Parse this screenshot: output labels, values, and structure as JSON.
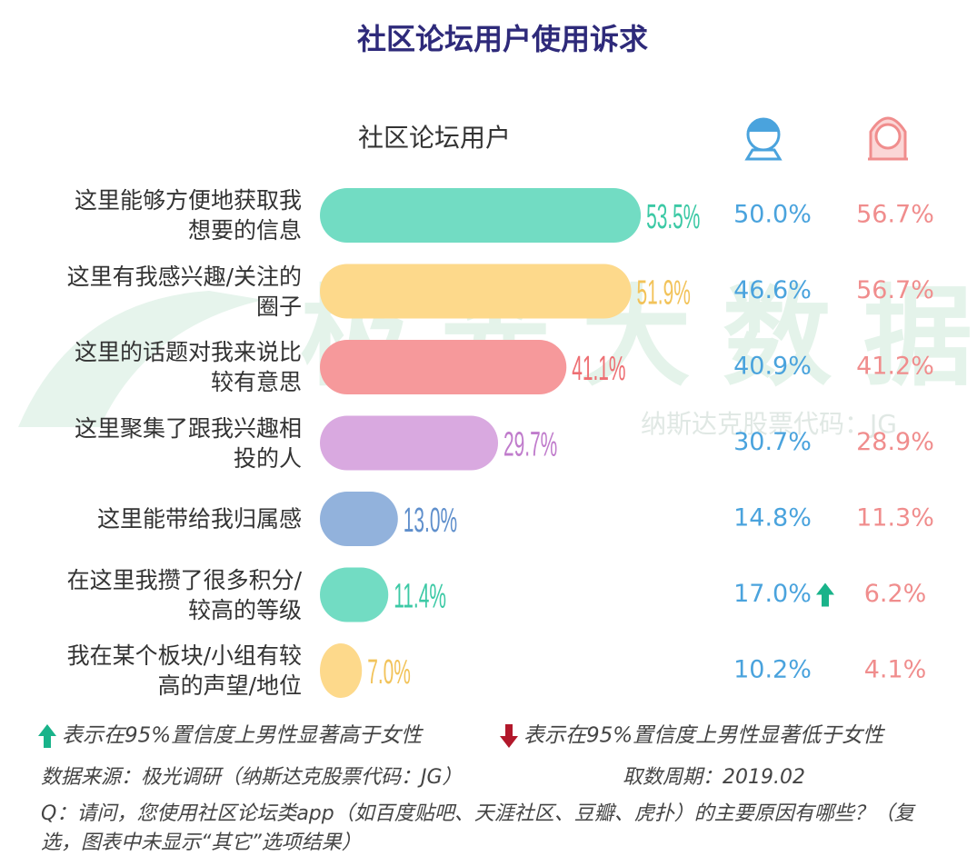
{
  "chart_data": {
    "type": "bar",
    "orientation": "horizontal",
    "title": "社区论坛用户使用诉求",
    "subtitle": "社区论坛用户",
    "categories": [
      "这里能够方便地获取我想要的信息",
      "这里有我感兴趣/关注的圈子",
      "这里的话题对我来说比较有意思",
      "这里聚集了跟我兴趣相投的人",
      "这里能带给我归属感",
      "在这里我攒了很多积分/较高的等级",
      "我在某个板块/小组有较高的声望/地位"
    ],
    "values": [
      53.5,
      51.9,
      41.1,
      29.7,
      13.0,
      11.4,
      7.0
    ],
    "value_labels": [
      "53.5%",
      "51.9%",
      "41.1%",
      "29.7%",
      "13.0%",
      "11.4%",
      "7.0%"
    ],
    "colors": [
      "#72dcc3",
      "#fdd98b",
      "#f6999b",
      "#d9a9e0",
      "#92b2dc",
      "#72dcc3",
      "#fdd98b"
    ],
    "label_colors": [
      "#3cc9a5",
      "#f2c35a",
      "#ee6f73",
      "#c07ccc",
      "#5f8fcc",
      "#3cc9a5",
      "#f2c35a"
    ],
    "xlim": [
      0,
      60
    ],
    "male": {
      "color": "#4aa3dd",
      "values": [
        50.0,
        46.6,
        40.9,
        30.7,
        14.8,
        17.0,
        10.2
      ],
      "value_labels": [
        "50.0%",
        "46.6%",
        "40.9%",
        "30.7%",
        "14.8%",
        "17.0%",
        "10.2%"
      ],
      "higher": [
        5
      ]
    },
    "female": {
      "color": "#f08d8d",
      "values": [
        56.7,
        56.7,
        41.2,
        28.9,
        11.3,
        6.2,
        4.1
      ],
      "value_labels": [
        "56.7%",
        "56.7%",
        "41.2%",
        "28.9%",
        "11.3%",
        "6.2%",
        "4.1%"
      ]
    },
    "legend_up": "表示在95%置信度上男性显著高于女性",
    "legend_down": "表示在95%置信度上男性显著低于女性",
    "source": "数据来源：极光调研（纳斯达克股票代码：JG）",
    "period": "取数周期：2019.02",
    "question": "Q：请问，您使用社区论坛类app（如百度贴吧、天涯社区、豆瓣、虎扑）的主要原因有哪些？（复选，图表中未显示“其它”选项结果）",
    "watermark": "极光大数据",
    "watermark_sub": "纳斯达克股票代码：JG"
  }
}
